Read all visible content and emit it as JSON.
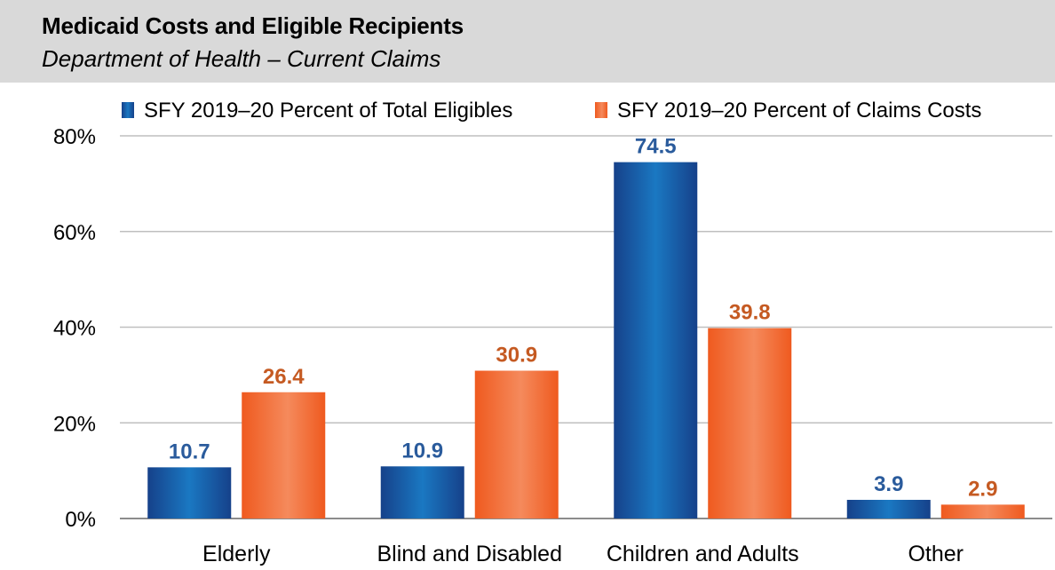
{
  "header": {
    "title": "Medicaid Costs and Eligible Recipients",
    "subtitle": "Department of Health – Current Claims"
  },
  "chart_data": {
    "type": "bar",
    "categories": [
      "Elderly",
      "Blind and Disabled",
      "Children and Adults",
      "Other"
    ],
    "series": [
      {
        "name": "SFY 2019–20 Percent of Total Eligibles",
        "values": [
          10.7,
          10.9,
          74.5,
          3.9
        ],
        "color": "#1f5aa6",
        "label_color": "#2a5b9c"
      },
      {
        "name": "SFY 2019–20 Percent of Claims Costs",
        "values": [
          26.4,
          30.9,
          39.8,
          2.9
        ],
        "color": "#f26a2e",
        "label_color": "#c55a22"
      }
    ],
    "ylim": [
      0,
      80
    ],
    "yticks": [
      "0%",
      "20%",
      "40%",
      "60%",
      "80%"
    ],
    "grid": true,
    "legend": "top"
  }
}
